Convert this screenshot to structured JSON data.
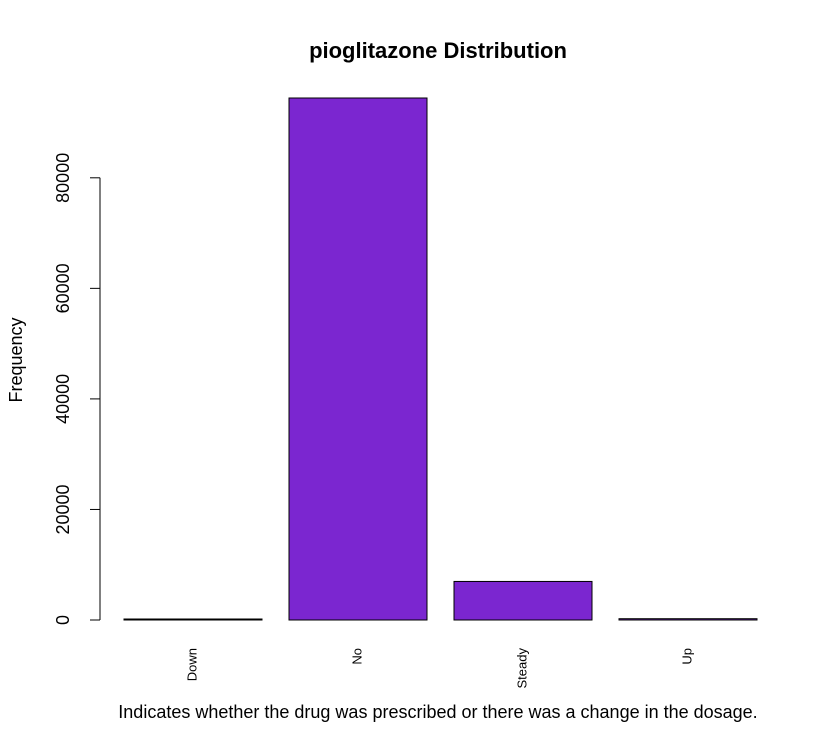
{
  "chart_data": {
    "type": "bar",
    "title": "pioglitazone Distribution",
    "xlabel": "Indicates whether the drug was prescribed or there was a change in the dosage.",
    "ylabel": "Frequency",
    "categories": [
      "Down",
      "No",
      "Steady",
      "Up"
    ],
    "values": [
      118,
      94438,
      6976,
      234
    ],
    "ylim": [
      0,
      94438
    ],
    "yticks": [
      0,
      20000,
      40000,
      60000,
      80000
    ],
    "ytick_labels": [
      "0",
      "20000",
      "40000",
      "60000",
      "80000"
    ],
    "bar_color": "#7B26D0",
    "grid": false,
    "legend": "none"
  }
}
